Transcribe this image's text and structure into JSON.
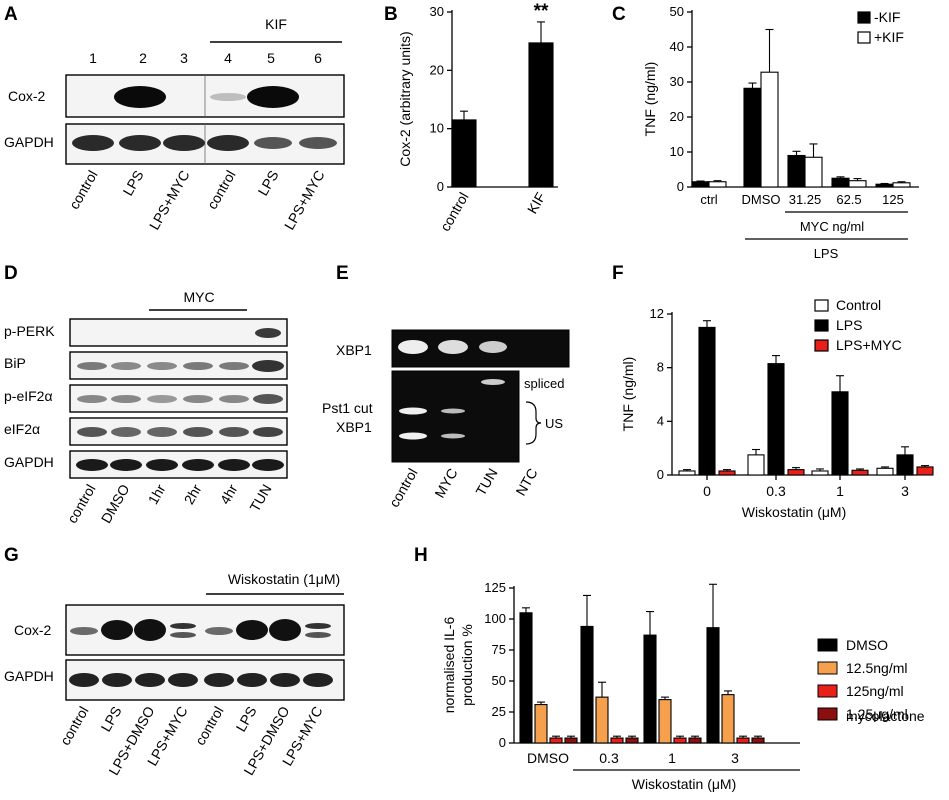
{
  "panels": {
    "A": {
      "letter": "A",
      "bracket": "KIF",
      "lanes": [
        "1",
        "2",
        "3",
        "4",
        "5",
        "6"
      ],
      "rows": [
        "Cox-2",
        "GAPDH"
      ],
      "xlabels": [
        "control",
        "LPS",
        "LPS+MYC",
        "control",
        "LPS",
        "LPS+MYC"
      ]
    },
    "B": {
      "letter": "B"
    },
    "C": {
      "letter": "C",
      "mycLabel": "MYC ng/ml",
      "lpsLabel": "LPS"
    },
    "D": {
      "letter": "D",
      "bracket": "MYC",
      "rows": [
        "p-PERK",
        "BiP",
        "p-eIF2α",
        "eIF2α",
        "GAPDH"
      ],
      "xlabels": [
        "control",
        "DMSO",
        "1hr",
        "2hr",
        "4hr",
        "TUN"
      ]
    },
    "E": {
      "letter": "E",
      "rows": [
        "XBP1",
        "Pst1 cut",
        "XBP1"
      ],
      "spliced": "spliced",
      "us": "US",
      "xlabels": [
        "control",
        "MYC",
        "TUN",
        "NTC"
      ]
    },
    "F": {
      "letter": "F"
    },
    "G": {
      "letter": "G",
      "bracket": "Wiskostatin (1μM)",
      "rows": [
        "Cox-2",
        "GAPDH"
      ],
      "xlabels": [
        "control",
        "LPS",
        "LPS+DMSO",
        "LPS+MYC",
        "control",
        "LPS",
        "LPS+DMSO",
        "LPS+MYC"
      ]
    },
    "H": {
      "letter": "H",
      "mycolactone": "mycolactone"
    }
  },
  "chart_data": [
    {
      "id": "B",
      "type": "bar",
      "categories": [
        "control",
        "KIF"
      ],
      "series": [
        {
          "values": [
            11.5,
            24.7
          ],
          "errors": [
            1.5,
            3.6
          ]
        }
      ],
      "ylabel": "Cox-2 (arbitrary units)",
      "ylim": [
        0,
        30
      ],
      "yticks": [
        "0",
        "10",
        "20",
        "30"
      ],
      "annotations": [
        {
          "category": "KIF",
          "text": "**"
        }
      ],
      "colors": [
        "#000000"
      ]
    },
    {
      "id": "C",
      "type": "bar",
      "categories": [
        "ctrl",
        "DMSO",
        "31.25",
        "62.5",
        "125"
      ],
      "series": [
        {
          "name": "-KIF",
          "values": [
            1.5,
            28.2,
            9.0,
            2.5,
            0.8
          ],
          "errors": [
            0.2,
            1.5,
            1.2,
            0.4,
            0.2
          ],
          "color": "#000000"
        },
        {
          "name": "+KIF",
          "values": [
            1.5,
            32.8,
            8.5,
            1.8,
            1.2
          ],
          "errors": [
            0.3,
            12.2,
            3.8,
            0.6,
            0.3
          ],
          "color": "#ffffff"
        }
      ],
      "ylabel": "TNF (ng/ml)",
      "ylim": [
        0,
        50
      ],
      "yticks": [
        "0",
        "10",
        "20",
        "30",
        "40",
        "50"
      ],
      "legend": "top-right"
    },
    {
      "id": "F",
      "type": "bar",
      "categories": [
        "0",
        "0.3",
        "1",
        "3"
      ],
      "series": [
        {
          "name": "Control",
          "values": [
            0.3,
            1.5,
            0.3,
            0.5
          ],
          "errors": [
            0.1,
            0.4,
            0.15,
            0.1
          ],
          "color": "#ffffff"
        },
        {
          "name": "LPS",
          "values": [
            11.0,
            8.3,
            6.2,
            1.5
          ],
          "errors": [
            0.5,
            0.6,
            1.2,
            0.6
          ],
          "color": "#000000"
        },
        {
          "name": "LPS+MYC",
          "values": [
            0.3,
            0.4,
            0.35,
            0.6
          ],
          "errors": [
            0.1,
            0.15,
            0.1,
            0.1
          ],
          "color": "#e8201a"
        }
      ],
      "ylabel": "TNF (ng/ml)",
      "xlabel": "Wiskostatin (μM)",
      "ylim": [
        0,
        12
      ],
      "yticks": [
        "0",
        "4",
        "8",
        "12"
      ],
      "legend": "top-right"
    },
    {
      "id": "H",
      "type": "bar",
      "categories": [
        "DMSO",
        "0.3",
        "1",
        "3"
      ],
      "series": [
        {
          "name": "DMSO",
          "values": [
            105,
            94,
            87,
            93
          ],
          "errors": [
            4,
            25,
            19,
            35
          ],
          "color": "#000000"
        },
        {
          "name": "12.5ng/ml",
          "values": [
            31,
            37,
            35,
            39
          ],
          "errors": [
            2,
            12,
            2,
            3
          ],
          "color": "#f5a04d"
        },
        {
          "name": "125ng/ml",
          "values": [
            4,
            4,
            4,
            4
          ],
          "errors": [
            1.5,
            1.5,
            1.5,
            1.5
          ],
          "color": "#e8201a"
        },
        {
          "name": "1.25μg/ml",
          "values": [
            4,
            4,
            4,
            4
          ],
          "errors": [
            1.5,
            1.5,
            1.5,
            1.5
          ],
          "color": "#8b0f0f"
        }
      ],
      "ylabel": [
        "normalised IL-6",
        "production %"
      ],
      "xlabel": "Wiskostatin (μM)",
      "ylim": [
        0,
        125
      ],
      "yticks": [
        "0",
        "25",
        "50",
        "75",
        "100",
        "125"
      ],
      "legend": "right"
    }
  ]
}
